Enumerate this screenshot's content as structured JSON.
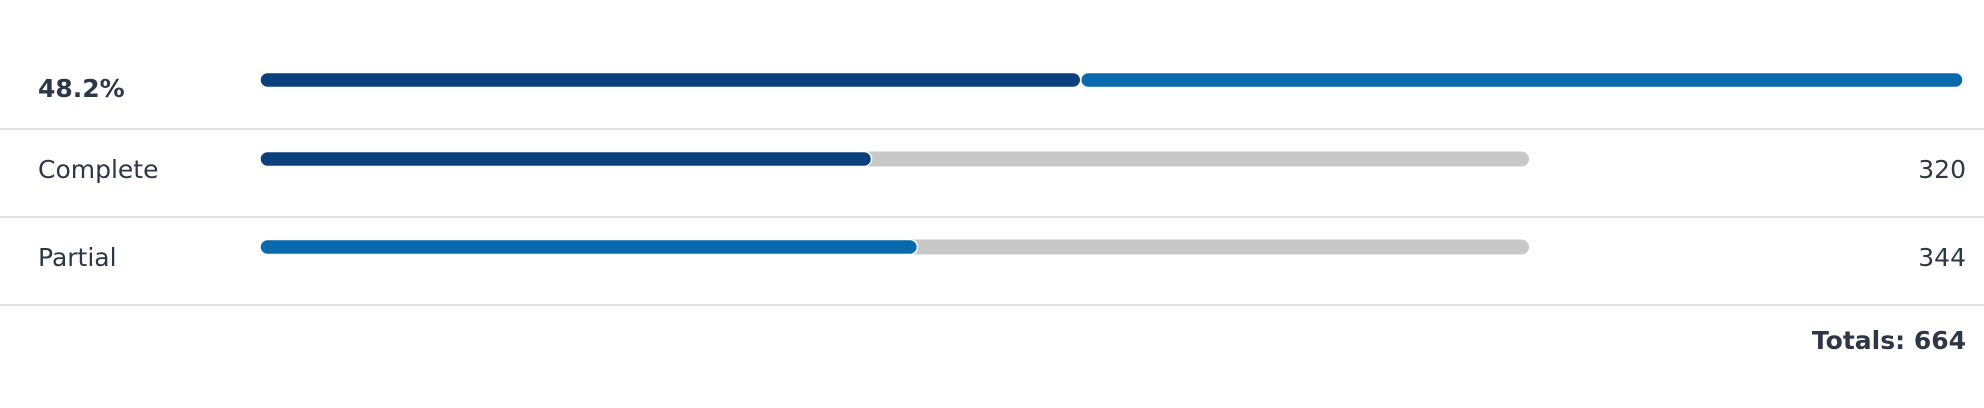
{
  "headline": "48.2%",
  "rows": [
    {
      "label": "Complete",
      "value": 320,
      "color": "#0b3f7e"
    },
    {
      "label": "Partial",
      "value": 344,
      "color": "#0869ad"
    }
  ],
  "totals": {
    "label": "Totals:",
    "value": 664
  },
  "track_color": "#c8c8c8"
}
